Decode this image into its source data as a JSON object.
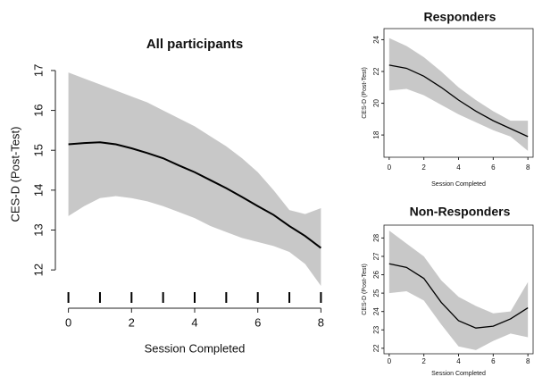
{
  "chart_data": [
    {
      "type": "line",
      "title": "All participants",
      "x_label": "Session Completed",
      "y_label": "CES-D (Post-Test)",
      "x": [
        0,
        0.5,
        1,
        1.5,
        2,
        2.5,
        3,
        3.5,
        4,
        4.5,
        5,
        5.5,
        6,
        6.5,
        7,
        7.5,
        8
      ],
      "values": [
        15.15,
        15.18,
        15.2,
        15.15,
        15.05,
        14.93,
        14.8,
        14.62,
        14.45,
        14.25,
        14.05,
        13.83,
        13.6,
        13.38,
        13.1,
        12.85,
        12.55
      ],
      "upper": [
        16.95,
        16.8,
        16.65,
        16.5,
        16.35,
        16.2,
        16.0,
        15.8,
        15.6,
        15.35,
        15.1,
        14.8,
        14.45,
        14.0,
        13.5,
        13.4,
        13.55
      ],
      "lower": [
        13.35,
        13.6,
        13.8,
        13.85,
        13.8,
        13.72,
        13.6,
        13.45,
        13.3,
        13.1,
        12.95,
        12.8,
        12.7,
        12.6,
        12.45,
        12.15,
        11.6
      ],
      "rug": [
        0,
        1,
        2,
        3,
        4,
        5,
        6,
        7,
        8
      ],
      "line_color": "#000000",
      "band_color": "#c8c8c8",
      "xlim": [
        -0.3,
        8.3
      ],
      "xticks": [
        0,
        2,
        4,
        6,
        8
      ],
      "ylim": [
        11.6,
        17.2
      ],
      "yticks": [
        12,
        13,
        14,
        15,
        16,
        17
      ]
    },
    {
      "type": "line",
      "title": "Responders",
      "x_label": "Session Completed",
      "y_label": "CES-D (Post-Test)",
      "x": [
        0,
        1,
        2,
        3,
        4,
        5,
        6,
        7,
        8
      ],
      "values": [
        22.4,
        22.2,
        21.7,
        21.0,
        20.2,
        19.5,
        18.9,
        18.4,
        17.9
      ],
      "upper": [
        24.1,
        23.6,
        22.9,
        22.0,
        21.0,
        20.2,
        19.5,
        18.9,
        18.9
      ],
      "lower": [
        20.8,
        20.9,
        20.5,
        19.9,
        19.3,
        18.8,
        18.3,
        17.9,
        17.0
      ],
      "line_color": "#000000",
      "band_color": "#c8c8c8",
      "xlim": [
        -0.3,
        8.3
      ],
      "xticks": [
        0,
        2,
        4,
        6,
        8
      ],
      "ylim": [
        16.6,
        24.7
      ],
      "yticks": [
        18,
        20,
        22,
        24
      ]
    },
    {
      "type": "line",
      "title": "Non-Responders",
      "x_label": "Session Completed",
      "y_label": "CES-D (Post-Test)",
      "x": [
        0,
        1,
        2,
        3,
        4,
        5,
        6,
        7,
        8
      ],
      "values": [
        26.6,
        26.4,
        25.8,
        24.5,
        23.5,
        23.1,
        23.2,
        23.6,
        24.2
      ],
      "upper": [
        28.4,
        27.7,
        27.0,
        25.7,
        24.8,
        24.3,
        23.9,
        24.0,
        25.6
      ],
      "lower": [
        25.0,
        25.1,
        24.6,
        23.3,
        22.1,
        21.9,
        22.4,
        22.8,
        22.6
      ],
      "line_color": "#000000",
      "band_color": "#c8c8c8",
      "xlim": [
        -0.3,
        8.3
      ],
      "xticks": [
        0,
        2,
        4,
        6,
        8
      ],
      "ylim": [
        21.7,
        28.7
      ],
      "yticks": [
        22,
        23,
        24,
        25,
        26,
        27,
        28
      ]
    }
  ]
}
